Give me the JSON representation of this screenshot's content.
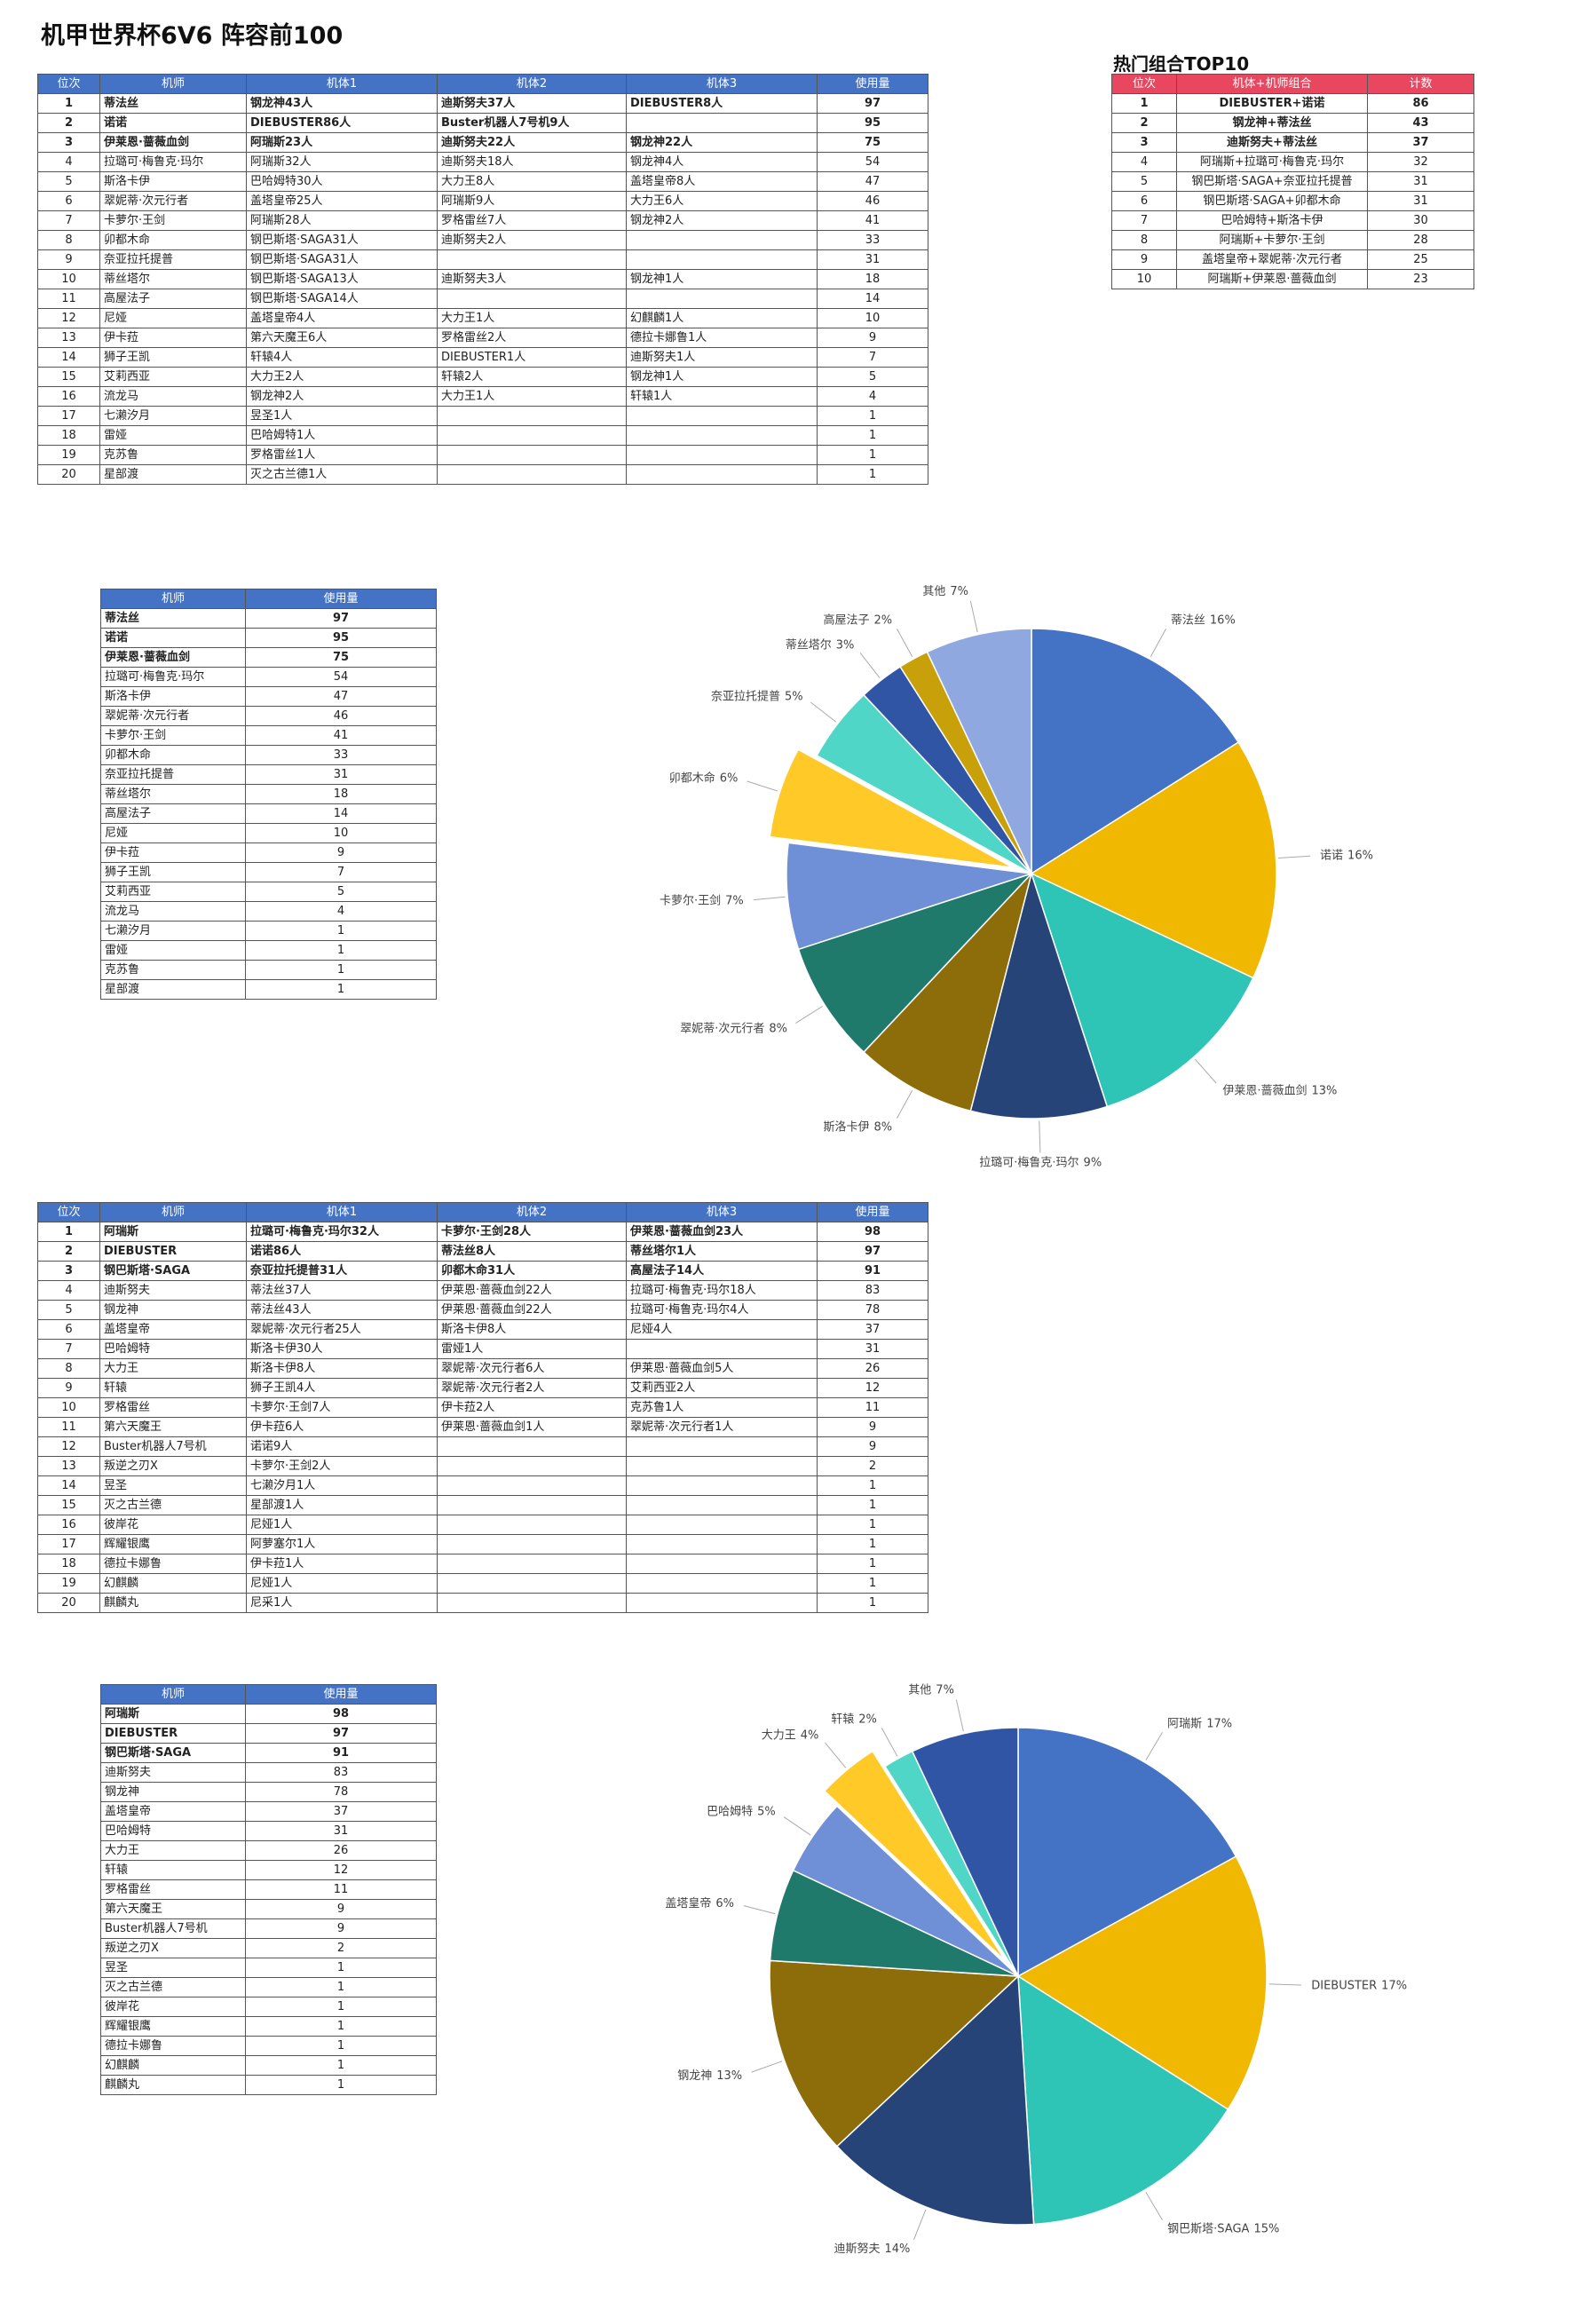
{
  "title": "机甲世界杯6V6 阵容前100",
  "pilot_table": {
    "columns": [
      "位次",
      "机师",
      "机体1",
      "机体2",
      "机体3",
      "使用量"
    ],
    "rows": [
      [
        1,
        "蒂法丝",
        "钢龙神43人",
        "迪斯努夫37人",
        "DIEBUSTER8人",
        97
      ],
      [
        2,
        "诺诺",
        "DIEBUSTER86人",
        "Buster机器人7号机9人",
        null,
        95
      ],
      [
        3,
        "伊莱恩·蔷薇血剑",
        "阿瑞斯23人",
        "迪斯努夫22人",
        "钢龙神22人",
        75
      ],
      [
        4,
        "拉璐可·梅鲁克·玛尔",
        "阿瑞斯32人",
        "迪斯努夫18人",
        "钢龙神4人",
        54
      ],
      [
        5,
        "斯洛卡伊",
        "巴哈姆特30人",
        "大力王8人",
        "盖塔皇帝8人",
        47
      ],
      [
        6,
        "翠妮蒂·次元行者",
        "盖塔皇帝25人",
        "阿瑞斯9人",
        "大力王6人",
        46
      ],
      [
        7,
        "卡萝尔·王剑",
        "阿瑞斯28人",
        "罗格雷丝7人",
        "钢龙神2人",
        41
      ],
      [
        8,
        "卯都木命",
        "钢巴斯塔·SAGA31人",
        "迪斯努夫2人",
        null,
        33
      ],
      [
        9,
        "奈亚拉托提普",
        "钢巴斯塔·SAGA31人",
        null,
        null,
        31
      ],
      [
        10,
        "蒂丝塔尔",
        "钢巴斯塔·SAGA13人",
        "迪斯努夫3人",
        "钢龙神1人",
        18
      ],
      [
        11,
        "高屋法子",
        "钢巴斯塔·SAGA14人",
        null,
        null,
        14
      ],
      [
        12,
        "尼娅",
        "盖塔皇帝4人",
        "大力王1人",
        "幻麒麟1人",
        10
      ],
      [
        13,
        "伊卡菈",
        "第六天魔王6人",
        "罗格雷丝2人",
        "德拉卡娜鲁1人",
        9
      ],
      [
        14,
        "狮子王凯",
        "轩辕4人",
        "DIEBUSTER1人",
        "迪斯努夫1人",
        7
      ],
      [
        15,
        "艾莉西亚",
        "大力王2人",
        "轩辕2人",
        "钢龙神1人",
        5
      ],
      [
        16,
        "流龙马",
        "钢龙神2人",
        "大力王1人",
        "轩辕1人",
        4
      ],
      [
        17,
        "七濑汐月",
        "昱圣1人",
        null,
        null,
        1
      ],
      [
        18,
        "雷娅",
        "巴哈姆特1人",
        null,
        null,
        1
      ],
      [
        19,
        "克苏鲁",
        "罗格雷丝1人",
        null,
        null,
        1
      ],
      [
        20,
        "星部渡",
        "灭之古兰德1人",
        null,
        null,
        1
      ]
    ]
  },
  "top10": {
    "title": "热门组合TOP10",
    "columns": [
      "位次",
      "机体+机师组合",
      "计数"
    ],
    "rows": [
      [
        1,
        "DIEBUSTER+诺诺",
        86
      ],
      [
        2,
        "钢龙神+蒂法丝",
        43
      ],
      [
        3,
        "迪斯努夫+蒂法丝",
        37
      ],
      [
        4,
        "阿瑞斯+拉璐可·梅鲁克·玛尔",
        32
      ],
      [
        5,
        "钢巴斯塔·SAGA+奈亚拉托提普",
        31
      ],
      [
        6,
        "钢巴斯塔·SAGA+卯都木命",
        31
      ],
      [
        7,
        "巴哈姆特+斯洛卡伊",
        30
      ],
      [
        8,
        "阿瑞斯+卡萝尔·王剑",
        28
      ],
      [
        9,
        "盖塔皇帝+翠妮蒂·次元行者",
        25
      ],
      [
        10,
        "阿瑞斯+伊莱恩·蔷薇血剑",
        23
      ]
    ]
  },
  "pilot_usage": {
    "columns": [
      "机师",
      "使用量"
    ],
    "rows": [
      [
        "蒂法丝",
        97
      ],
      [
        "诺诺",
        95
      ],
      [
        "伊莱恩·蔷薇血剑",
        75
      ],
      [
        "拉璐可·梅鲁克·玛尔",
        54
      ],
      [
        "斯洛卡伊",
        47
      ],
      [
        "翠妮蒂·次元行者",
        46
      ],
      [
        "卡萝尔·王剑",
        41
      ],
      [
        "卯都木命",
        33
      ],
      [
        "奈亚拉托提普",
        31
      ],
      [
        "蒂丝塔尔",
        18
      ],
      [
        "高屋法子",
        14
      ],
      [
        "尼娅",
        10
      ],
      [
        "伊卡菈",
        9
      ],
      [
        "狮子王凯",
        7
      ],
      [
        "艾莉西亚",
        5
      ],
      [
        "流龙马",
        4
      ],
      [
        "七濑汐月",
        1
      ],
      [
        "雷娅",
        1
      ],
      [
        "克苏鲁",
        1
      ],
      [
        "星部渡",
        1
      ]
    ]
  },
  "mech_table": {
    "columns": [
      "位次",
      "机师",
      "机体1",
      "机体2",
      "机体3",
      "使用量"
    ],
    "rows": [
      [
        1,
        "阿瑞斯",
        "拉璐可·梅鲁克·玛尔32人",
        "卡萝尔·王剑28人",
        "伊莱恩·蔷薇血剑23人",
        98
      ],
      [
        2,
        "DIEBUSTER",
        "诺诺86人",
        "蒂法丝8人",
        "蒂丝塔尔1人",
        97
      ],
      [
        3,
        "钢巴斯塔·SAGA",
        "奈亚拉托提普31人",
        "卯都木命31人",
        "高屋法子14人",
        91
      ],
      [
        4,
        "迪斯努夫",
        "蒂法丝37人",
        "伊莱恩·蔷薇血剑22人",
        "拉璐可·梅鲁克·玛尔18人",
        83
      ],
      [
        5,
        "钢龙神",
        "蒂法丝43人",
        "伊莱恩·蔷薇血剑22人",
        "拉璐可·梅鲁克·玛尔4人",
        78
      ],
      [
        6,
        "盖塔皇帝",
        "翠妮蒂·次元行者25人",
        "斯洛卡伊8人",
        "尼娅4人",
        37
      ],
      [
        7,
        "巴哈姆特",
        "斯洛卡伊30人",
        "雷娅1人",
        null,
        31
      ],
      [
        8,
        "大力王",
        "斯洛卡伊8人",
        "翠妮蒂·次元行者6人",
        "伊莱恩·蔷薇血剑5人",
        26
      ],
      [
        9,
        "轩辕",
        "狮子王凯4人",
        "翠妮蒂·次元行者2人",
        "艾莉西亚2人",
        12
      ],
      [
        10,
        "罗格雷丝",
        "卡萝尔·王剑7人",
        "伊卡菈2人",
        "克苏鲁1人",
        11
      ],
      [
        11,
        "第六天魔王",
        "伊卡菈6人",
        "伊莱恩·蔷薇血剑1人",
        "翠妮蒂·次元行者1人",
        9
      ],
      [
        12,
        "Buster机器人7号机",
        "诺诺9人",
        null,
        null,
        9
      ],
      [
        13,
        "叛逆之刃X",
        "卡萝尔·王剑2人",
        null,
        null,
        2
      ],
      [
        14,
        "昱圣",
        "七濑汐月1人",
        null,
        null,
        1
      ],
      [
        15,
        "灭之古兰德",
        "星部渡1人",
        null,
        null,
        1
      ],
      [
        16,
        "彼岸花",
        "尼娅1人",
        null,
        null,
        1
      ],
      [
        17,
        "辉耀银鹰",
        "阿萝塞尔1人",
        null,
        null,
        1
      ],
      [
        18,
        "德拉卡娜鲁",
        "伊卡菈1人",
        null,
        null,
        1
      ],
      [
        19,
        "幻麒麟",
        "尼娅1人",
        null,
        null,
        1
      ],
      [
        20,
        "麒麟丸",
        "尼采1人",
        null,
        null,
        1
      ]
    ]
  },
  "mech_usage": {
    "columns": [
      "机师",
      "使用量"
    ],
    "rows": [
      [
        "阿瑞斯",
        98
      ],
      [
        "DIEBUSTER",
        97
      ],
      [
        "钢巴斯塔·SAGA",
        91
      ],
      [
        "迪斯努夫",
        83
      ],
      [
        "钢龙神",
        78
      ],
      [
        "盖塔皇帝",
        37
      ],
      [
        "巴哈姆特",
        31
      ],
      [
        "大力王",
        26
      ],
      [
        "轩辕",
        12
      ],
      [
        "罗格雷丝",
        11
      ],
      [
        "第六天魔王",
        9
      ],
      [
        "Buster机器人7号机",
        9
      ],
      [
        "叛逆之刃X",
        2
      ],
      [
        "昱圣",
        1
      ],
      [
        "灭之古兰德",
        1
      ],
      [
        "彼岸花",
        1
      ],
      [
        "辉耀银鹰",
        1
      ],
      [
        "德拉卡娜鲁",
        1
      ],
      [
        "幻麒麟",
        1
      ],
      [
        "麒麟丸",
        1
      ]
    ]
  },
  "chart_data": [
    {
      "type": "pie",
      "categories": [
        "蒂法丝",
        "诺诺",
        "伊莱恩·蔷薇血剑",
        "拉璐可·梅鲁克·玛尔",
        "斯洛卡伊",
        "翠妮蒂·次元行者",
        "卡萝尔·王剑",
        "卯都木命",
        "奈亚拉托提普",
        "蒂丝塔尔",
        "高屋法子",
        "其他"
      ],
      "values": [
        16,
        16,
        13,
        9,
        8,
        8,
        7,
        6,
        5,
        3,
        2,
        7
      ],
      "value_labels": [
        "16%",
        "16%",
        "13%",
        "9%",
        "8%",
        "8%",
        "7%",
        "6%",
        "5%",
        "3%",
        "2%",
        "7%"
      ],
      "colors": [
        "#4472c4",
        "#f0b800",
        "#2ec4b6",
        "#264478",
        "#8c6d0a",
        "#1f7a6b",
        "#6f8fd6",
        "#ffca28",
        "#4fd6c6",
        "#2f55a4",
        "#c8a00a",
        "#8fa9e0"
      ],
      "explode": 7
    },
    {
      "type": "pie",
      "categories": [
        "阿瑞斯",
        "DIEBUSTER",
        "钢巴斯塔·SAGA",
        "迪斯努夫",
        "钢龙神",
        "盖塔皇帝",
        "巴哈姆特",
        "大力王",
        "轩辕",
        "其他"
      ],
      "values": [
        17,
        17,
        15,
        14,
        13,
        6,
        5,
        4,
        2,
        7
      ],
      "value_labels": [
        "17%",
        "17%",
        "15%",
        "14%",
        "13%",
        "6%",
        "5%",
        "4%",
        "2%",
        "7%"
      ],
      "colors": [
        "#4472c4",
        "#f0b800",
        "#2ec4b6",
        "#264478",
        "#8c6d0a",
        "#1f7a6b",
        "#6f8fd6",
        "#ffca28",
        "#4fd6c6",
        "#2f55a4"
      ],
      "explode": 7
    }
  ]
}
